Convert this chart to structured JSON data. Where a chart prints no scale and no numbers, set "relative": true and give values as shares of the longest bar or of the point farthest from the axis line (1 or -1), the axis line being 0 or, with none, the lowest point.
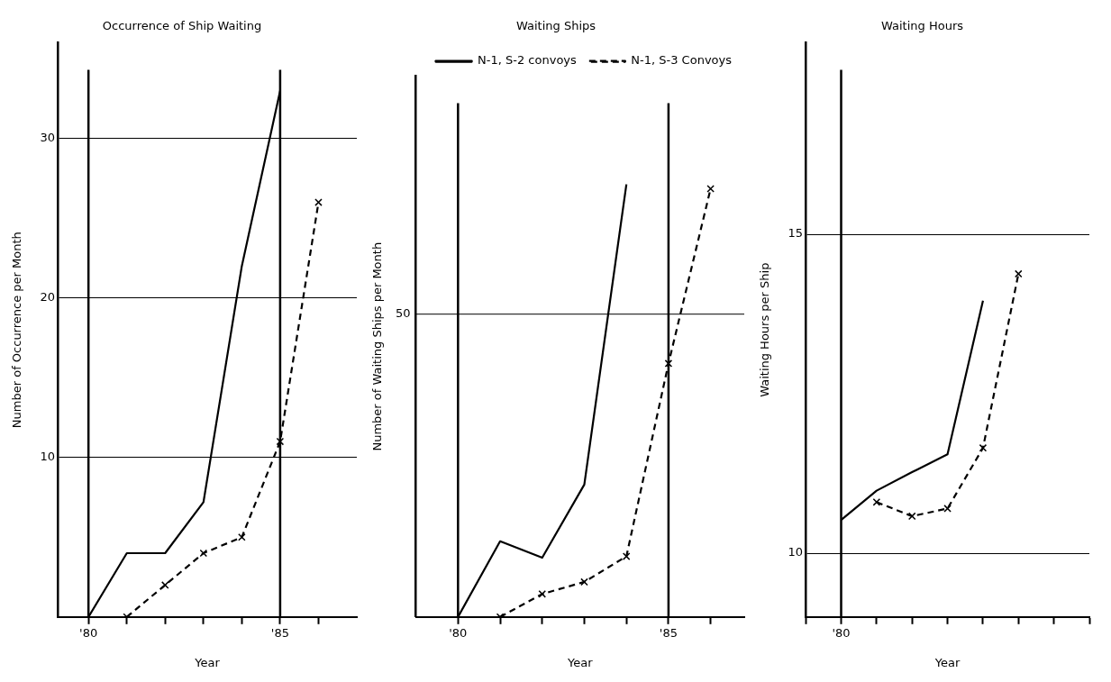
{
  "chart_data": [
    {
      "type": "line",
      "title": "Occurrence of Ship Waiting",
      "xlabel": "Year",
      "ylabel": "Number of Occurrence per Month",
      "xlim": [
        79.2,
        87
      ],
      "xticks": [
        {
          "value": 80,
          "label": "'80"
        },
        {
          "value": 81,
          "label": null
        },
        {
          "value": 82,
          "label": null
        },
        {
          "value": 83,
          "label": null
        },
        {
          "value": 84,
          "label": null
        },
        {
          "value": 85,
          "label": "'85"
        },
        {
          "value": 86,
          "label": null
        }
      ],
      "ylim": [
        0,
        36
      ],
      "yticks": [
        10,
        20,
        30
      ],
      "grid": "y",
      "legend": false,
      "ref_lines": [
        {
          "axis": "x",
          "value": 80,
          "label": null
        },
        {
          "axis": "x",
          "value": 85,
          "label": null
        }
      ],
      "series": [
        {
          "color": "#000000",
          "line_style": "solid",
          "marker": "none",
          "x": [
            80,
            81,
            82,
            83,
            84,
            85
          ],
          "values": [
            0,
            4,
            4,
            7.2,
            22,
            33
          ]
        },
        {
          "color": "#000000",
          "line_style": "dashed",
          "marker": "cross",
          "x": [
            81,
            82,
            83,
            84,
            85,
            86
          ],
          "values": [
            0,
            2,
            4,
            5,
            11,
            26
          ]
        }
      ]
    },
    {
      "type": "line",
      "title": "Waiting Ships",
      "xlabel": "Year",
      "ylabel": "Number of Waiting Ships per Month",
      "relative": true,
      "xlim": [
        79,
        86.8
      ],
      "xticks": [
        {
          "value": 80,
          "label": "'80"
        },
        {
          "value": 81,
          "label": null
        },
        {
          "value": 82,
          "label": null
        },
        {
          "value": 83,
          "label": null
        },
        {
          "value": 84,
          "label": null
        },
        {
          "value": 85,
          "label": "'85"
        },
        {
          "value": 86,
          "label": null
        }
      ],
      "legend": "top right",
      "ref_lines": [
        {
          "axis": "x",
          "value": 80,
          "label": null
        },
        {
          "axis": "x",
          "value": 85,
          "label": null
        },
        {
          "axis": "y",
          "value": 0.7,
          "label": null
        }
      ],
      "annotations": [
        {
          "text": "50",
          "x": 79,
          "y": 0.7
        }
      ],
      "series": [
        {
          "name": "N-1, S-2 convoys",
          "color": "#000000",
          "line_style": "solid",
          "marker": "none",
          "x": [
            80,
            81,
            82,
            83,
            84
          ],
          "values": [
            0,
            0.175,
            0.137,
            0.306,
            1
          ]
        },
        {
          "name": "N-1, S-3 Convoys",
          "color": "#000000",
          "line_style": "dashed",
          "marker": "cross",
          "x": [
            81,
            82,
            83,
            84,
            85,
            86
          ],
          "values": [
            0,
            0.053,
            0.081,
            0.14,
            0.586,
            0.99
          ]
        }
      ]
    },
    {
      "type": "line",
      "title": "Waiting Hours",
      "xlabel": "Year",
      "ylabel": "Waiting Hours per Ship",
      "categories": [
        null,
        "'80",
        null,
        null,
        null,
        null,
        null,
        null,
        null
      ],
      "ylim": [
        9,
        18
      ],
      "yticks": [
        10,
        15
      ],
      "grid": "y",
      "legend": false,
      "ref_lines": [
        {
          "axis": "x",
          "value": "'80",
          "label": null
        }
      ],
      "series": [
        {
          "color": "#000000",
          "line_style": "solid",
          "marker": "none",
          "values": [
            null,
            10.52,
            10.98,
            11.27,
            11.55,
            13.96,
            null,
            null,
            null
          ]
        },
        {
          "color": "#000000",
          "line_style": "dashed",
          "marker": "cross",
          "values": [
            null,
            null,
            10.8,
            10.58,
            10.7,
            11.65,
            14.38,
            null,
            null
          ]
        }
      ]
    }
  ]
}
